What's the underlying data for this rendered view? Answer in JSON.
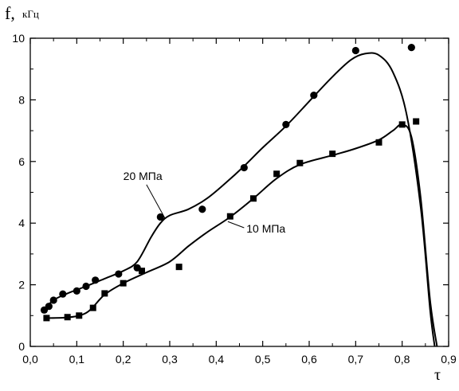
{
  "chart_data": {
    "type": "scatter",
    "title": "",
    "xlabel": "τ",
    "ylabel_main": "f,",
    "ylabel_unit": "кГц",
    "xlim": [
      0.0,
      0.9
    ],
    "ylim": [
      0,
      10
    ],
    "x_ticks": [
      "0,0",
      "0,1",
      "0,2",
      "0,3",
      "0,4",
      "0,5",
      "0,6",
      "0,7",
      "0,8",
      "0,9"
    ],
    "y_ticks": [
      "0",
      "2",
      "4",
      "6",
      "8",
      "10"
    ],
    "grid": false,
    "annotations": [
      {
        "text": "20 МПа",
        "series": 0
      },
      {
        "text": "10 МПа",
        "series": 1
      }
    ],
    "series": [
      {
        "name": "20 МПа",
        "marker": "circle",
        "points": [
          [
            0.03,
            1.18
          ],
          [
            0.04,
            1.3
          ],
          [
            0.05,
            1.5
          ],
          [
            0.07,
            1.7
          ],
          [
            0.1,
            1.8
          ],
          [
            0.12,
            1.95
          ],
          [
            0.14,
            2.15
          ],
          [
            0.19,
            2.35
          ],
          [
            0.23,
            2.55
          ],
          [
            0.28,
            4.2
          ],
          [
            0.37,
            4.45
          ],
          [
            0.46,
            5.8
          ],
          [
            0.55,
            7.2
          ],
          [
            0.61,
            8.15
          ],
          [
            0.7,
            9.6
          ],
          [
            0.82,
            9.7
          ]
        ],
        "curve": [
          [
            0.03,
            1.2
          ],
          [
            0.05,
            1.5
          ],
          [
            0.08,
            1.72
          ],
          [
            0.12,
            1.95
          ],
          [
            0.16,
            2.2
          ],
          [
            0.2,
            2.45
          ],
          [
            0.23,
            2.75
          ],
          [
            0.26,
            3.55
          ],
          [
            0.28,
            4.0
          ],
          [
            0.3,
            4.25
          ],
          [
            0.34,
            4.45
          ],
          [
            0.38,
            4.8
          ],
          [
            0.42,
            5.3
          ],
          [
            0.46,
            5.85
          ],
          [
            0.5,
            6.45
          ],
          [
            0.55,
            7.15
          ],
          [
            0.6,
            7.95
          ],
          [
            0.65,
            8.75
          ],
          [
            0.69,
            9.3
          ],
          [
            0.72,
            9.5
          ],
          [
            0.75,
            9.45
          ],
          [
            0.78,
            8.9
          ],
          [
            0.81,
            7.5
          ],
          [
            0.84,
            4.5
          ],
          [
            0.86,
            1.2
          ],
          [
            0.87,
            0.0
          ]
        ]
      },
      {
        "name": "10 МПа",
        "marker": "square",
        "points": [
          [
            0.035,
            0.92
          ],
          [
            0.08,
            0.95
          ],
          [
            0.105,
            1.0
          ],
          [
            0.135,
            1.25
          ],
          [
            0.16,
            1.72
          ],
          [
            0.2,
            2.05
          ],
          [
            0.24,
            2.45
          ],
          [
            0.32,
            2.58
          ],
          [
            0.43,
            4.22
          ],
          [
            0.48,
            4.8
          ],
          [
            0.53,
            5.6
          ],
          [
            0.58,
            5.95
          ],
          [
            0.65,
            6.25
          ],
          [
            0.75,
            6.62
          ],
          [
            0.8,
            7.2
          ],
          [
            0.83,
            7.3
          ]
        ],
        "curve": [
          [
            0.035,
            0.92
          ],
          [
            0.08,
            0.94
          ],
          [
            0.11,
            1.02
          ],
          [
            0.13,
            1.2
          ],
          [
            0.16,
            1.68
          ],
          [
            0.2,
            2.05
          ],
          [
            0.25,
            2.4
          ],
          [
            0.3,
            2.75
          ],
          [
            0.34,
            3.25
          ],
          [
            0.38,
            3.7
          ],
          [
            0.43,
            4.2
          ],
          [
            0.48,
            4.8
          ],
          [
            0.53,
            5.45
          ],
          [
            0.58,
            5.9
          ],
          [
            0.65,
            6.2
          ],
          [
            0.7,
            6.42
          ],
          [
            0.75,
            6.7
          ],
          [
            0.78,
            7.0
          ],
          [
            0.8,
            7.2
          ],
          [
            0.82,
            6.8
          ],
          [
            0.84,
            4.8
          ],
          [
            0.86,
            1.5
          ],
          [
            0.875,
            0.0
          ]
        ]
      }
    ]
  }
}
